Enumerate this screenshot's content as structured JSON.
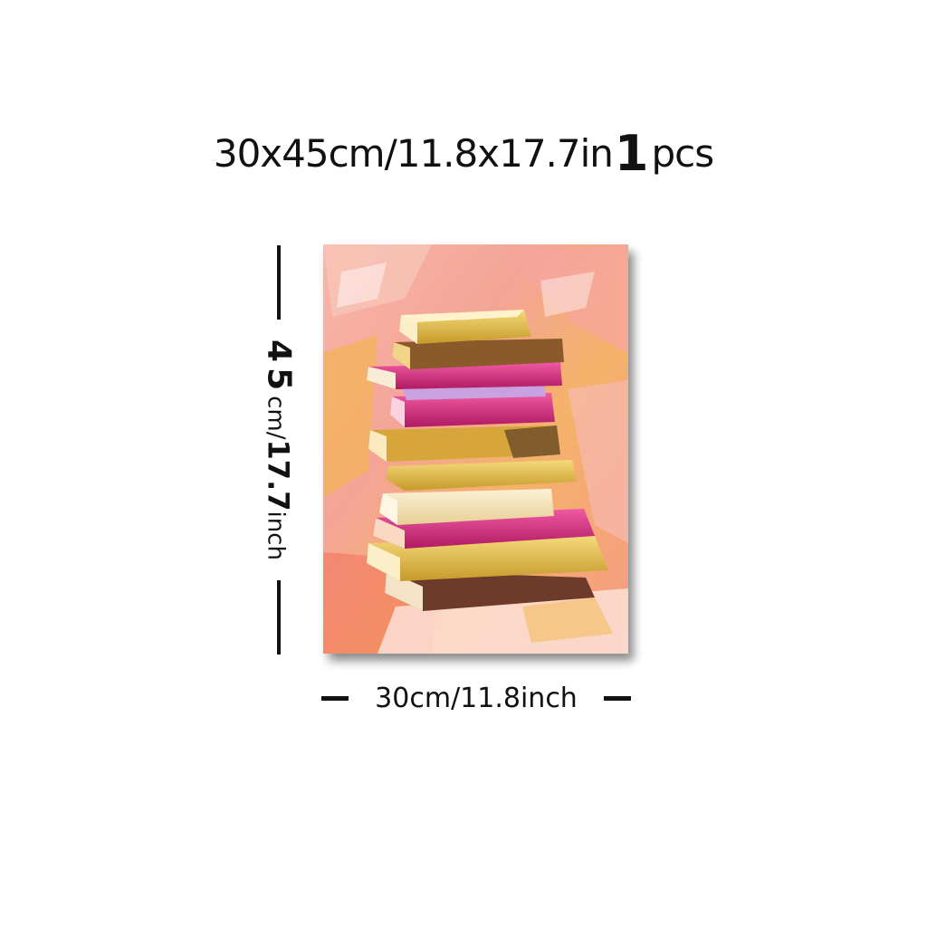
{
  "header": {
    "size_text": "30x45cm/11.8x17.7in",
    "quantity_number": "1",
    "quantity_unit": "pcs"
  },
  "dimensions": {
    "height_value": "45",
    "height_unit": "cm/",
    "height_inch_value": "17.7",
    "height_inch_unit": "inch",
    "width_label": "30cm/11.8inch"
  },
  "artwork": {
    "subject": "stack-of-books-painting",
    "colors": {
      "background_pink": "#f4a3a0",
      "background_orange": "#f2b25a",
      "book_yellow": "#e9c24a",
      "book_magenta": "#d6287a",
      "book_cream": "#f6e8c3",
      "book_brown": "#7a4a2a"
    }
  }
}
